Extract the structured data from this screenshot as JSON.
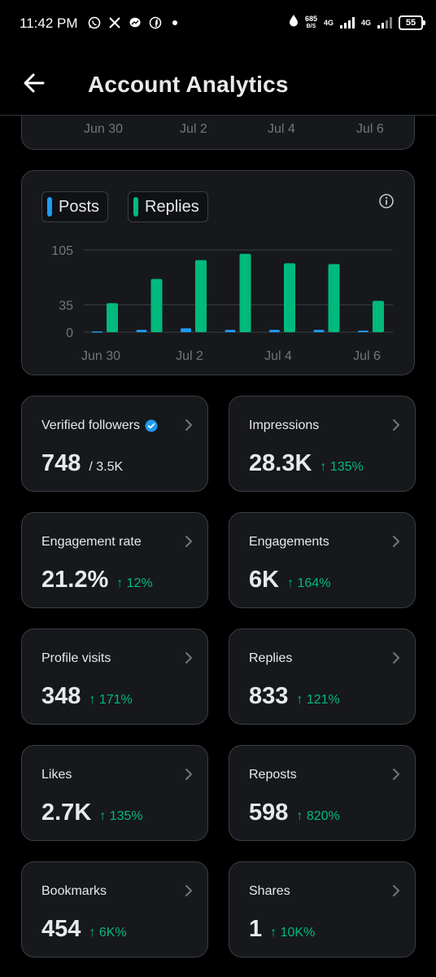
{
  "status_bar": {
    "time": "11:42 PM",
    "speed_value": "685",
    "speed_unit": "B/S",
    "net1": "4G",
    "net2": "4G",
    "battery": "55"
  },
  "header": {
    "title": "Account Analytics"
  },
  "top_card": {
    "ticks": [
      "Jun 30",
      "Jul 2",
      "Jul 4",
      "Jul 6"
    ]
  },
  "chart_data": {
    "type": "bar",
    "categories": [
      "Jun 30",
      "Jul 1",
      "Jul 2",
      "Jul 3",
      "Jul 4",
      "Jul 5",
      "Jul 6"
    ],
    "x_tick_labels": [
      "Jun 30",
      "Jul 2",
      "Jul 4",
      "Jul 6"
    ],
    "series": [
      {
        "name": "Posts",
        "color": "#1d9bf0",
        "values": [
          1,
          3,
          5,
          3,
          3,
          3,
          2
        ]
      },
      {
        "name": "Replies",
        "color": "#00ba7c",
        "values": [
          37,
          68,
          92,
          100,
          88,
          87,
          40
        ]
      }
    ],
    "y_ticks": [
      0,
      35,
      105
    ],
    "ylim": [
      0,
      105
    ],
    "grid": true,
    "legend": "top-left"
  },
  "metrics": [
    {
      "label": "Verified followers",
      "value": "748",
      "total": "/ 3.5K",
      "verified": true
    },
    {
      "label": "Impressions",
      "value": "28.3K",
      "change": "↑ 135%"
    },
    {
      "label": "Engagement rate",
      "value": "21.2%",
      "change": "↑ 12%"
    },
    {
      "label": "Engagements",
      "value": "6K",
      "change": "↑ 164%"
    },
    {
      "label": "Profile visits",
      "value": "348",
      "change": "↑ 171%"
    },
    {
      "label": "Replies",
      "value": "833",
      "change": "↑ 121%"
    },
    {
      "label": "Likes",
      "value": "2.7K",
      "change": "↑ 135%"
    },
    {
      "label": "Reposts",
      "value": "598",
      "change": "↑ 820%"
    },
    {
      "label": "Bookmarks",
      "value": "454",
      "change": "↑ 6K%"
    },
    {
      "label": "Shares",
      "value": "1",
      "change": "↑ 10K%"
    }
  ]
}
